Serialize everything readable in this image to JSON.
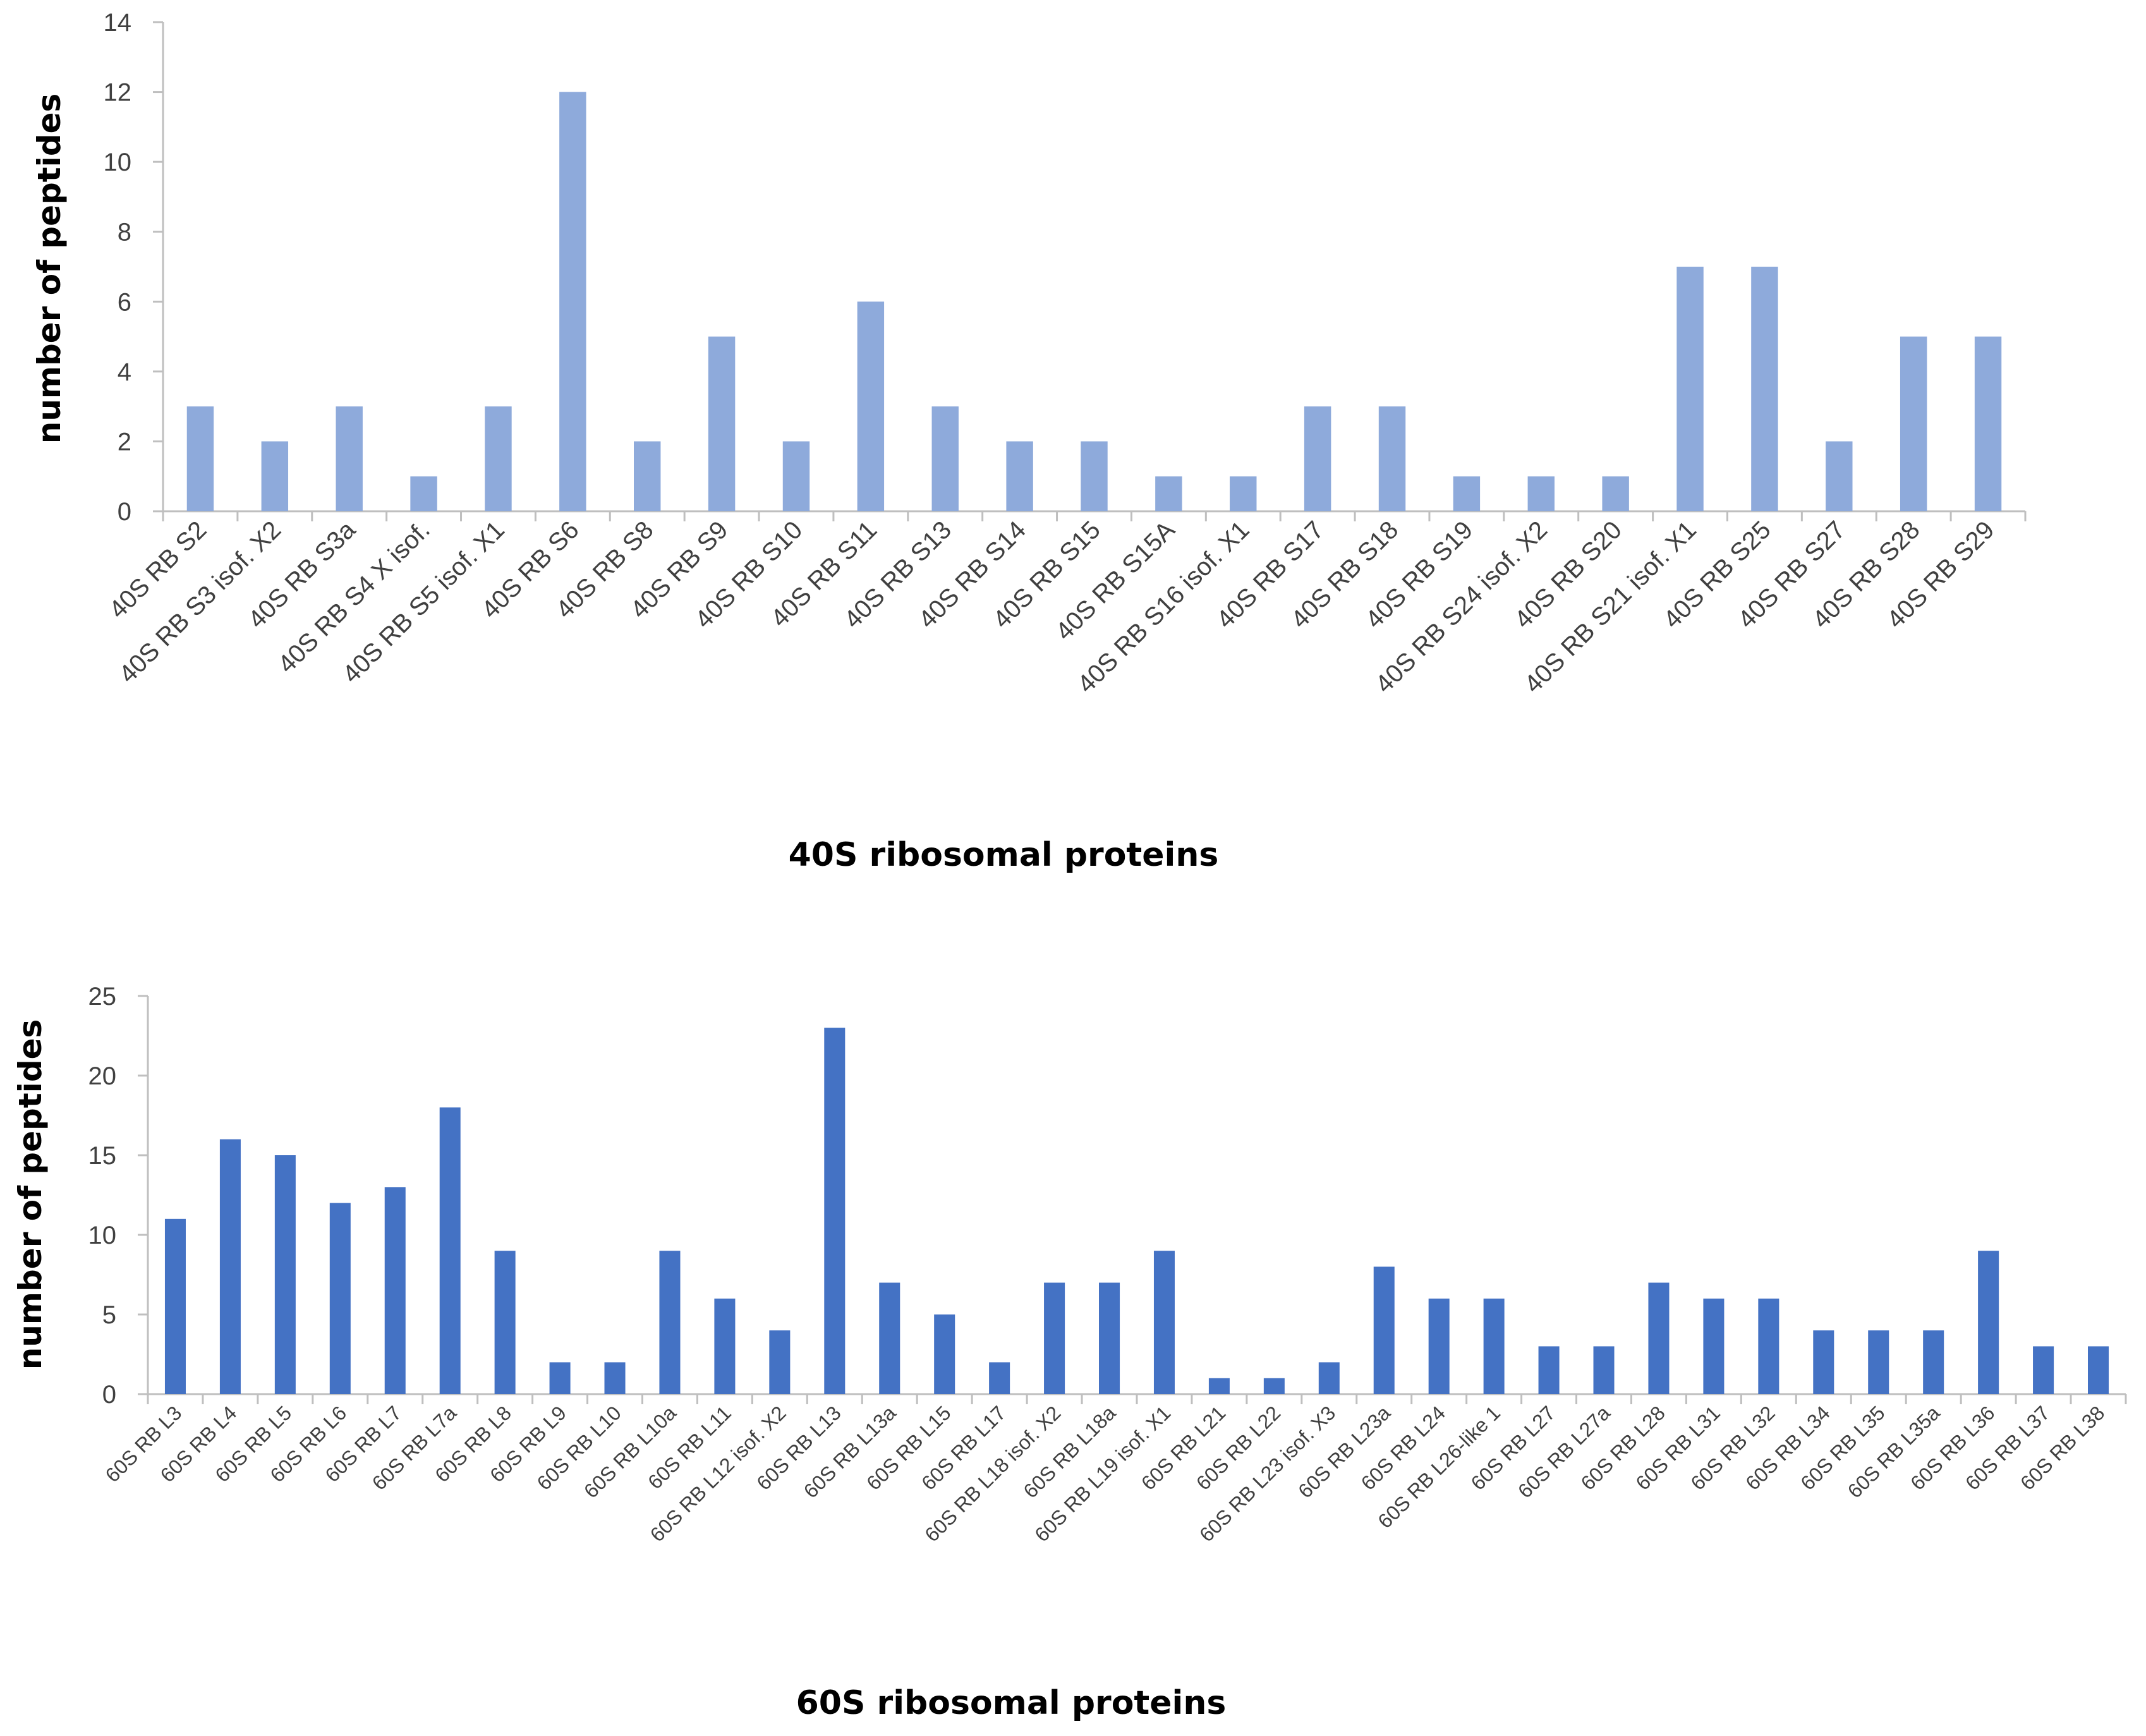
{
  "chart_data": [
    {
      "type": "bar",
      "title": "",
      "xlabel": "40S ribosomal proteins",
      "ylabel": "number of  peptides",
      "ylim": [
        0,
        14
      ],
      "yticks": [
        0,
        2,
        4,
        6,
        8,
        10,
        12,
        14
      ],
      "color": "#8eaadb",
      "categories": [
        "40S RB S2",
        "40S RB S3 isof. X2",
        "40S RB S3a",
        "40S RB S4  X isof.",
        "40S RB S5 isof. X1",
        "40S RB S6",
        "40S RB S8",
        "40S RB S9",
        "40S RB S10",
        "40S RB S11",
        "40S RB S13",
        "40S RB S14",
        "40S RB S15",
        "40S RB S15A",
        "40S RB S16 isof. X1",
        "40S RB S17",
        "40S RB S18",
        "40S RB S19",
        "40S RB S24 isof. X2",
        "40S RB S20",
        "40S RB S21 isof. X1",
        "40S RB S25",
        "40S RB S27",
        "40S RB S28",
        "40S RB S29"
      ],
      "values": [
        3,
        2,
        3,
        1,
        3,
        12,
        2,
        5,
        2,
        6,
        3,
        2,
        2,
        1,
        1,
        3,
        3,
        1,
        1,
        1,
        7,
        7,
        2,
        5,
        5
      ]
    },
    {
      "type": "bar",
      "title": "",
      "xlabel": "60S ribosomal proteins",
      "ylabel": "number of  peptides",
      "ylim": [
        0,
        25
      ],
      "yticks": [
        0,
        5,
        10,
        15,
        20,
        25
      ],
      "color": "#4472c4",
      "categories": [
        "60S RB L3",
        "60S RB L4",
        "60S RB L5",
        "60S RB L6",
        "60S RB L7",
        "60S RB L7a",
        "60S RB L8",
        "60S RB L9",
        "60S RB L10",
        "60S RB L10a",
        "60S RB L11",
        "60S RB L12 isof. X2",
        "60S RB L13",
        "60S RB L13a",
        "60S RB L15",
        "60S RB L17",
        "60S RB L18 isof. X2",
        "60S RB L18a",
        "60S RB L19 isof. X1",
        "60S RB L21",
        "60S RB L22",
        "60S RB L23 isof. X3",
        "60S RB L23a",
        "60S RB L24",
        "60S RB L26-like 1",
        "60S RB L27",
        "60S RB L27a",
        "60S RB L28",
        "60S RB L31",
        "60S RB L32",
        "60S RB L34",
        "60S RB L35",
        "60S RB L35a",
        "60S RB L36",
        "60S RB L37",
        "60S RB L38"
      ],
      "values": [
        11,
        16,
        15,
        12,
        13,
        18,
        9,
        2,
        2,
        9,
        6,
        4,
        23,
        7,
        5,
        2,
        7,
        7,
        9,
        1,
        1,
        2,
        8,
        6,
        6,
        3,
        3,
        7,
        6,
        6,
        4,
        4,
        4,
        9,
        3,
        3
      ]
    }
  ]
}
